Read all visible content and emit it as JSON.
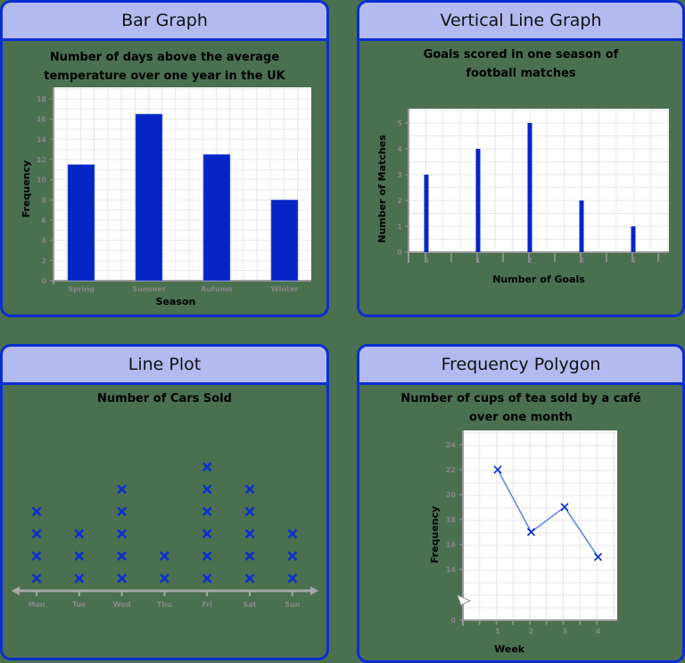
{
  "panels": [
    {
      "title": "Bar Graph",
      "subtitle_line1": "Number of days above the average",
      "subtitle_line2": "temperature over one year in the UK"
    },
    {
      "title": "Vertical Line Graph",
      "subtitle_line1": "Goals scored in one season of",
      "subtitle_line2": "football matches"
    },
    {
      "title": "Line Plot",
      "subtitle_line1": "Number of Cars Sold"
    },
    {
      "title": "Frequency Polygon",
      "subtitle_line1": "Number of cups of tea sold by a café",
      "subtitle_line2": "over one month"
    }
  ],
  "colors": {
    "border": "#0a2ed1",
    "header": "#b3baf0",
    "bar": "#0525c6",
    "marker": "#0a2ed1",
    "polyline": "#6b86e6",
    "grid": "#e6e6e6",
    "axis": "#9a9a9a"
  },
  "chart_data": [
    {
      "type": "bar",
      "title": "Number of days above the average temperature over one year in the UK",
      "xlabel": "Season",
      "ylabel": "Frequency",
      "categories": [
        "Spring",
        "Summer",
        "Autumn",
        "Winter"
      ],
      "values": [
        11.5,
        16.5,
        12.5,
        8
      ],
      "yticks": [
        0,
        2,
        4,
        6,
        8,
        10,
        12,
        14,
        16,
        18
      ],
      "ylim": [
        0,
        19
      ],
      "grid": true
    },
    {
      "type": "bar",
      "subtype": "vertical-line",
      "title": "Goals scored in one season of football matches",
      "xlabel": "Number of Goals",
      "ylabel": "Number of Matches",
      "categories": [
        "0",
        "1",
        "2",
        "3",
        "4"
      ],
      "values": [
        3,
        4,
        5,
        2,
        1
      ],
      "yticks": [
        0,
        1,
        2,
        3,
        4,
        5
      ],
      "ylim": [
        0,
        5.5
      ],
      "grid": true
    },
    {
      "type": "scatter",
      "subtype": "line-plot",
      "title": "Number of Cars Sold",
      "xlabel": "",
      "ylabel": "",
      "categories": [
        "Mon",
        "Tue",
        "Wed",
        "Thu",
        "Fri",
        "Sat",
        "Sun"
      ],
      "values": [
        4,
        3,
        5,
        2,
        6,
        5,
        3
      ],
      "marker": "x",
      "grid": false
    },
    {
      "type": "line",
      "subtype": "frequency-polygon",
      "title": "Number of cups of tea sold by a café over one month",
      "xlabel": "Week",
      "ylabel": "Frequency",
      "x": [
        1,
        2,
        3,
        4
      ],
      "values": [
        22,
        17,
        19,
        15
      ],
      "yticks": [
        0,
        14,
        16,
        18,
        20,
        22,
        24
      ],
      "ylim": [
        0,
        25
      ],
      "axis_break": true,
      "grid": true
    }
  ]
}
